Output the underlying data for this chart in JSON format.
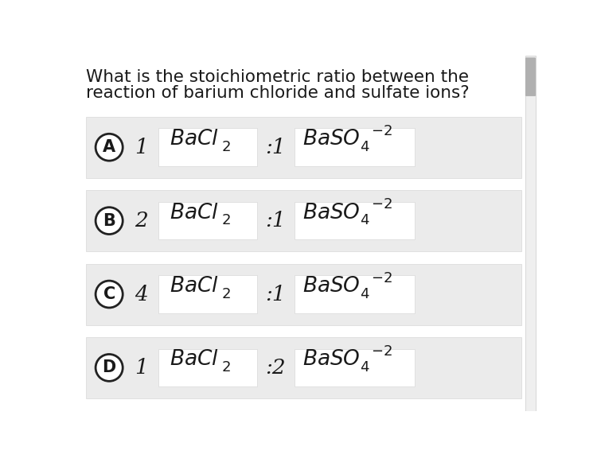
{
  "title_line1": "What is the stoichiometric ratio between the",
  "title_line2": "reaction of barium chloride and sulfate ions?",
  "background_color": "#ffffff",
  "option_bg_color": "#ebebeb",
  "white_box_color": "#ffffff",
  "box_edge_color": "#d8d8d8",
  "option_labels": [
    "A",
    "B",
    "C",
    "D"
  ],
  "option_coeffs": [
    "1",
    "2",
    "4",
    "1"
  ],
  "option_ratios": [
    ":1",
    ":1",
    ":1",
    ":2"
  ],
  "text_color": "#1a1a1a",
  "title_fontsize": 15.5,
  "label_fontsize": 15,
  "coeff_fontsize": 19,
  "formula_fontsize": 19,
  "ratio_fontsize": 19,
  "sub_fontsize": 13,
  "sup_fontsize": 13,
  "scroll_bar_color": "#d0d0d0",
  "scroll_thumb_color": "#b0b0b0"
}
